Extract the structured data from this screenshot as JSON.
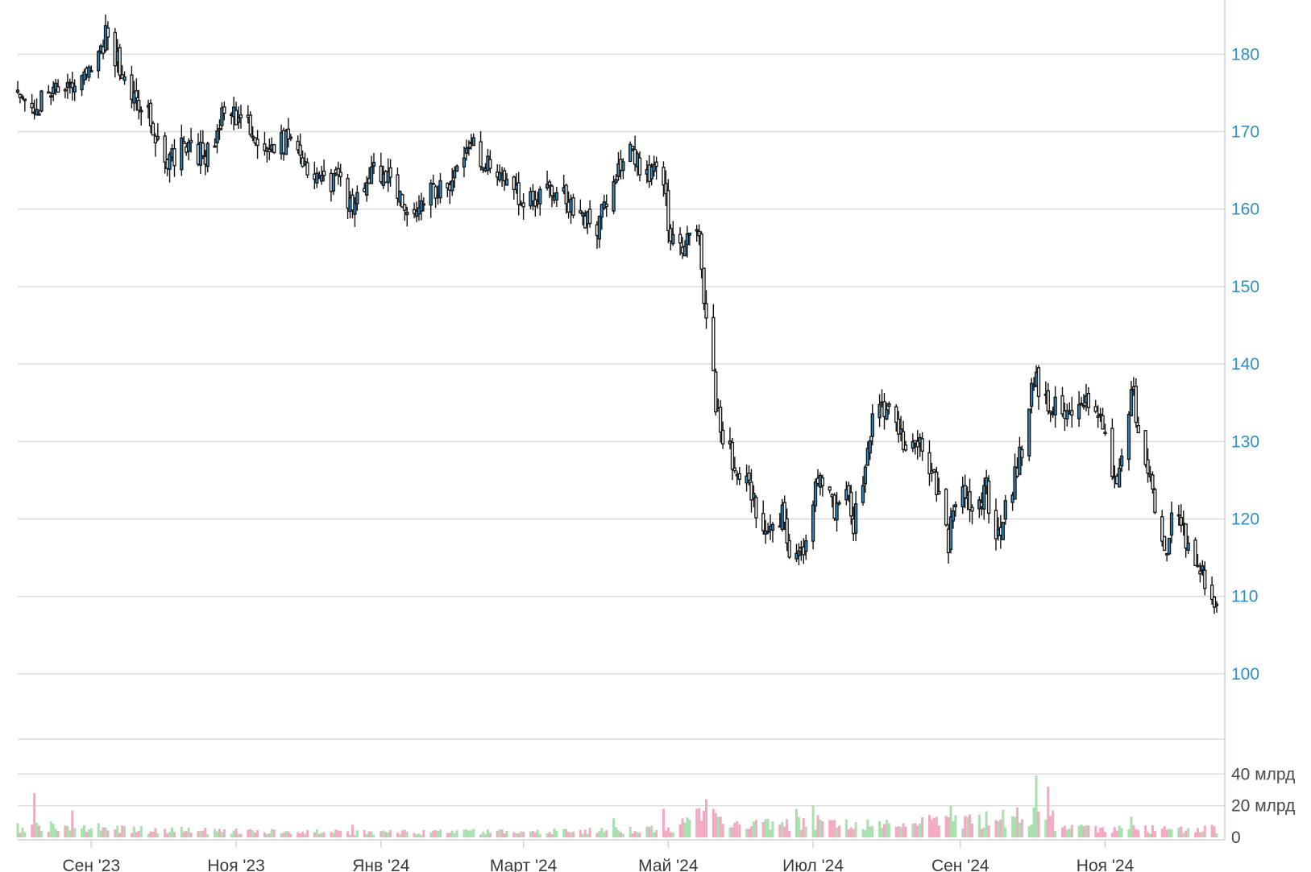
{
  "chart_data": {
    "type": "candlestick",
    "title": "",
    "xlabel": "",
    "ylabel": "",
    "price_ticks": [
      100,
      110,
      120,
      130,
      140,
      150,
      160,
      170,
      180
    ],
    "ylim": [
      95,
      187
    ],
    "volume_ticks": [
      {
        "value": 0,
        "label": "0"
      },
      {
        "value": 20,
        "label": "20 млрд"
      },
      {
        "value": 40,
        "label": "40 млрд"
      }
    ],
    "volume_ylim": [
      0,
      62
    ],
    "volume_unit": "млрд",
    "x_range": [
      "2023-08-01",
      "2024-12-18"
    ],
    "x_ticks": [
      {
        "date": "2023-09-01",
        "label": "Сен '23"
      },
      {
        "date": "2023-11-01",
        "label": "Ноя '23"
      },
      {
        "date": "2024-01-01",
        "label": "Янв '24"
      },
      {
        "date": "2024-03-01",
        "label": "Март '24"
      },
      {
        "date": "2024-05-01",
        "label": "Май '24"
      },
      {
        "date": "2024-07-01",
        "label": "Июл '24"
      },
      {
        "date": "2024-09-01",
        "label": "Сен '24"
      },
      {
        "date": "2024-11-01",
        "label": "Ноя '24"
      }
    ],
    "grid": true,
    "colors": {
      "candle_up": "#2f8fc9",
      "candle_down": "#ffffff",
      "candle_outline": "#111111",
      "volume_up": "#a8e0ae",
      "volume_down": "#f2a9c1",
      "grid": "#dcdcdc",
      "price_axis": "#2f8fc9"
    },
    "price_keypoints": [
      [
        "2023-08-01",
        175
      ],
      [
        "2023-08-08",
        172
      ],
      [
        "2023-08-15",
        176
      ],
      [
        "2023-08-22",
        175
      ],
      [
        "2023-09-01",
        178
      ],
      [
        "2023-09-08",
        183
      ],
      [
        "2023-09-15",
        176
      ],
      [
        "2023-09-25",
        172
      ],
      [
        "2023-10-02",
        166
      ],
      [
        "2023-10-10",
        168
      ],
      [
        "2023-10-20",
        167
      ],
      [
        "2023-10-28",
        173
      ],
      [
        "2023-11-05",
        171
      ],
      [
        "2023-11-15",
        168
      ],
      [
        "2023-11-25",
        169
      ],
      [
        "2023-12-03",
        165
      ],
      [
        "2023-12-15",
        163
      ],
      [
        "2023-12-20",
        160
      ],
      [
        "2023-12-28",
        165
      ],
      [
        "2024-01-05",
        164
      ],
      [
        "2024-01-12",
        160
      ],
      [
        "2024-01-20",
        162
      ],
      [
        "2024-02-01",
        164
      ],
      [
        "2024-02-08",
        168
      ],
      [
        "2024-02-20",
        165
      ],
      [
        "2024-03-01",
        161
      ],
      [
        "2024-03-10",
        162
      ],
      [
        "2024-03-20",
        161
      ],
      [
        "2024-04-01",
        157
      ],
      [
        "2024-04-08",
        165
      ],
      [
        "2024-04-15",
        167
      ],
      [
        "2024-04-22",
        164
      ],
      [
        "2024-04-28",
        165
      ],
      [
        "2024-05-02",
        156
      ],
      [
        "2024-05-08",
        155
      ],
      [
        "2024-05-14",
        158
      ],
      [
        "2024-05-17",
        145
      ],
      [
        "2024-05-22",
        133
      ],
      [
        "2024-05-29",
        127
      ],
      [
        "2024-06-05",
        123
      ],
      [
        "2024-06-12",
        117
      ],
      [
        "2024-06-18",
        121
      ],
      [
        "2024-06-22",
        114
      ],
      [
        "2024-06-28",
        116
      ],
      [
        "2024-07-03",
        125
      ],
      [
        "2024-07-10",
        121
      ],
      [
        "2024-07-14",
        124
      ],
      [
        "2024-07-18",
        119
      ],
      [
        "2024-07-26",
        132
      ],
      [
        "2024-08-01",
        135
      ],
      [
        "2024-08-08",
        130
      ],
      [
        "2024-08-15",
        129
      ],
      [
        "2024-08-22",
        124
      ],
      [
        "2024-08-27",
        117
      ],
      [
        "2024-09-01",
        127
      ],
      [
        "2024-09-06",
        120
      ],
      [
        "2024-09-12",
        124
      ],
      [
        "2024-09-16",
        117
      ],
      [
        "2024-09-22",
        123
      ],
      [
        "2024-09-28",
        130
      ],
      [
        "2024-10-02",
        138
      ],
      [
        "2024-10-08",
        135
      ],
      [
        "2024-10-15",
        134
      ],
      [
        "2024-10-22",
        134
      ],
      [
        "2024-10-27",
        136
      ],
      [
        "2024-10-31",
        132
      ],
      [
        "2024-11-04",
        124
      ],
      [
        "2024-11-08",
        128
      ],
      [
        "2024-11-12",
        137
      ],
      [
        "2024-11-16",
        131
      ],
      [
        "2024-11-22",
        122
      ],
      [
        "2024-11-27",
        116
      ],
      [
        "2024-12-01",
        124
      ],
      [
        "2024-12-05",
        116
      ],
      [
        "2024-12-10",
        114
      ],
      [
        "2024-12-14",
        112
      ],
      [
        "2024-12-18",
        108
      ]
    ],
    "volume_keypoints": [
      [
        "2023-08-01",
        6
      ],
      [
        "2023-09-01",
        6
      ],
      [
        "2023-10-15",
        4
      ],
      [
        "2024-01-01",
        3
      ],
      [
        "2024-04-01",
        4
      ],
      [
        "2024-05-01",
        5
      ],
      [
        "2024-05-15",
        14
      ],
      [
        "2024-06-01",
        8
      ],
      [
        "2024-07-01",
        9
      ],
      [
        "2024-08-01",
        8
      ],
      [
        "2024-09-01",
        10
      ],
      [
        "2024-10-01",
        14
      ],
      [
        "2024-10-15",
        6
      ],
      [
        "2024-11-01",
        5
      ],
      [
        "2024-12-18",
        5
      ]
    ],
    "volume_spikes": [
      [
        "2023-08-08",
        28
      ],
      [
        "2023-08-15",
        10
      ],
      [
        "2023-08-24",
        17
      ],
      [
        "2023-09-04",
        9
      ],
      [
        "2023-11-22",
        4
      ],
      [
        "2023-12-20",
        8
      ],
      [
        "2024-04-08",
        12
      ],
      [
        "2024-04-29",
        18
      ],
      [
        "2024-05-17",
        24
      ],
      [
        "2024-05-20",
        18
      ],
      [
        "2024-05-23",
        13
      ],
      [
        "2024-06-24",
        18
      ],
      [
        "2024-07-01",
        20
      ],
      [
        "2024-07-03",
        14
      ],
      [
        "2024-08-01",
        11
      ],
      [
        "2024-08-22",
        13
      ],
      [
        "2024-08-28",
        20
      ],
      [
        "2024-08-30",
        14
      ],
      [
        "2024-10-02",
        19
      ],
      [
        "2024-10-03",
        39
      ],
      [
        "2024-10-08",
        32
      ],
      [
        "2024-10-10",
        17
      ],
      [
        "2024-10-22",
        8
      ],
      [
        "2024-11-12",
        13
      ],
      [
        "2024-12-16",
        8
      ]
    ]
  }
}
